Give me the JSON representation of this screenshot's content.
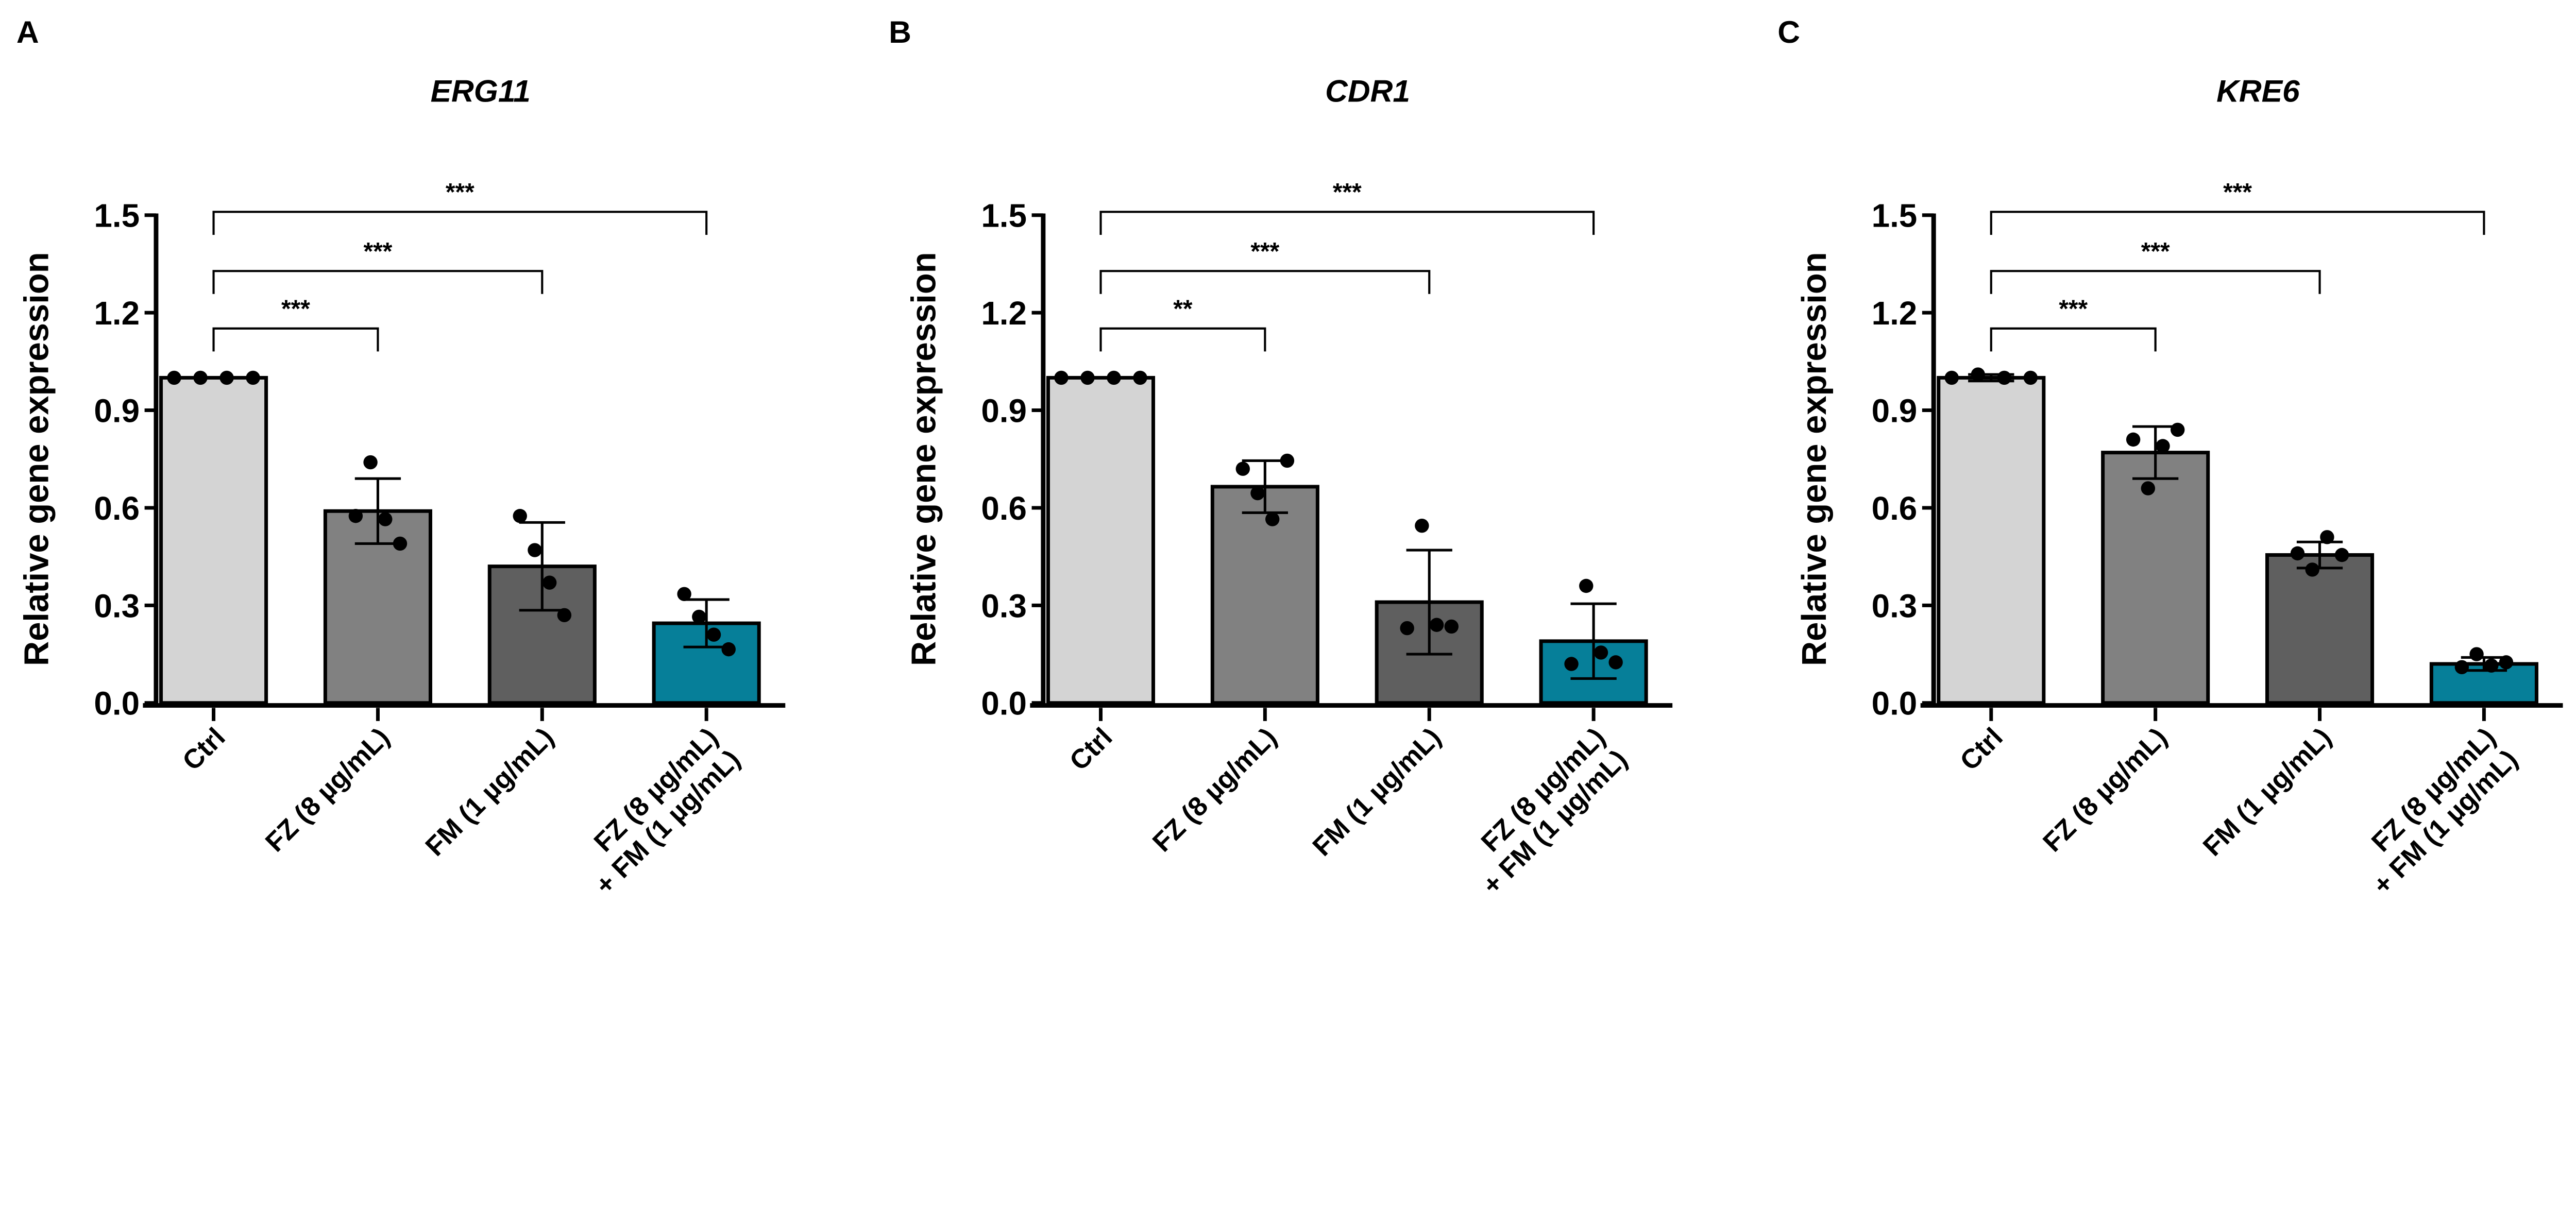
{
  "chart_data": [
    {
      "type": "bar",
      "panel_letter": "A",
      "title": "ERG11",
      "ylabel": "Relative gene expression",
      "xlabel": "",
      "ylim": [
        0,
        1.5
      ],
      "yticks": [
        "0.0",
        "0.3",
        "0.6",
        "0.9",
        "1.2",
        "1.5"
      ],
      "categories": [
        [
          "Ctrl"
        ],
        [
          "FZ (8 µg/mL)"
        ],
        [
          "FM (1 µg/mL)"
        ],
        [
          "FZ (8 µg/mL)",
          "+ FM (1 µg/mL)"
        ]
      ],
      "values": [
        1.0,
        0.59,
        0.42,
        0.245
      ],
      "sd": [
        0.0,
        0.1,
        0.135,
        0.073
      ],
      "points": [
        [
          1.0,
          1.0,
          1.0,
          1.0
        ],
        [
          0.575,
          0.74,
          0.565,
          0.49
        ],
        [
          0.575,
          0.47,
          0.37,
          0.27
        ],
        [
          0.335,
          0.265,
          0.21,
          0.165
        ]
      ],
      "significance": [
        {
          "from": 0,
          "to": 1,
          "label": "***"
        },
        {
          "from": 0,
          "to": 2,
          "label": "***"
        },
        {
          "from": 0,
          "to": 3,
          "label": "***"
        }
      ]
    },
    {
      "type": "bar",
      "panel_letter": "B",
      "title": "CDR1",
      "ylabel": "Relative gene expression",
      "xlabel": "",
      "ylim": [
        0,
        1.5
      ],
      "yticks": [
        "0.0",
        "0.3",
        "0.6",
        "0.9",
        "1.2",
        "1.5"
      ],
      "categories": [
        [
          "Ctrl"
        ],
        [
          "FZ (8 µg/mL)"
        ],
        [
          "FM (1 µg/mL)"
        ],
        [
          "FZ (8 µg/mL)",
          "+ FM (1 µg/mL)"
        ]
      ],
      "values": [
        1.0,
        0.665,
        0.31,
        0.19
      ],
      "sd": [
        0.0,
        0.08,
        0.16,
        0.115
      ],
      "points": [
        [
          1.0,
          1.0,
          1.0,
          1.0
        ],
        [
          0.72,
          0.645,
          0.565,
          0.745
        ],
        [
          0.23,
          0.545,
          0.24,
          0.235
        ],
        [
          0.12,
          0.36,
          0.155,
          0.125
        ]
      ],
      "significance": [
        {
          "from": 0,
          "to": 1,
          "label": "**"
        },
        {
          "from": 0,
          "to": 2,
          "label": "***"
        },
        {
          "from": 0,
          "to": 3,
          "label": "***"
        }
      ]
    },
    {
      "type": "bar",
      "panel_letter": "C",
      "title": "KRE6",
      "ylabel": "Relative gene expression",
      "xlabel": "",
      "ylim": [
        0,
        1.5
      ],
      "yticks": [
        "0.0",
        "0.3",
        "0.6",
        "0.9",
        "1.2",
        "1.5"
      ],
      "categories": [
        [
          "Ctrl"
        ],
        [
          "FZ (8 µg/mL)"
        ],
        [
          "FM (1 µg/mL)"
        ],
        [
          "FZ (8 µg/mL)",
          "+ FM (1 µg/mL)"
        ]
      ],
      "values": [
        1.0,
        0.77,
        0.455,
        0.12
      ],
      "sd": [
        0.01,
        0.08,
        0.04,
        0.02
      ],
      "points": [
        [
          1.0,
          1.01,
          1.0,
          1.0
        ],
        [
          0.81,
          0.66,
          0.79,
          0.84
        ],
        [
          0.46,
          0.41,
          0.51,
          0.455
        ],
        [
          0.11,
          0.15,
          0.115,
          0.125
        ]
      ],
      "significance": [
        {
          "from": 0,
          "to": 1,
          "label": "***"
        },
        {
          "from": 0,
          "to": 2,
          "label": "***"
        },
        {
          "from": 0,
          "to": 3,
          "label": "***"
        }
      ]
    }
  ],
  "colors": {
    "bars": [
      "#d4d4d4",
      "#818181",
      "#5f5f5f",
      "#067f99"
    ],
    "outline": "#000000",
    "points": "#000000"
  }
}
